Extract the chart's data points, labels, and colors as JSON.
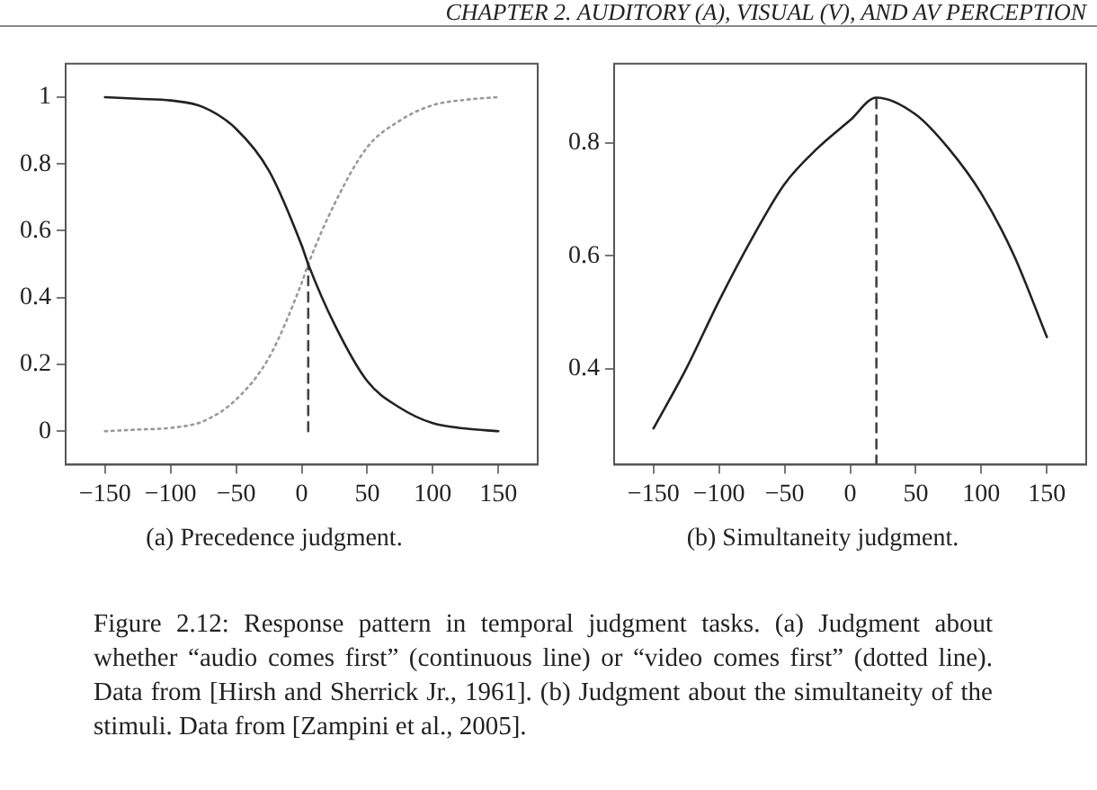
{
  "chart_data": [
    {
      "type": "line",
      "title": "(a) Precedence judgment.",
      "annotations": [
        "CHAPTER 2. AUDITORY (A), VISUAL (V), AND AV PERCEPTION",
        "Figure 2.12: Response pattern in temporal judgment tasks. (a) Judgment about whether “audio comes first” (continuous line) or “video comes first” (dotted line). Data from [Hirsh and Sherrick Jr., 1961]. (b) Judgment about the simultaneity of the stimuli. Data from [Zampini et al., 2005]."
      ],
      "xlim": [
        -180,
        180
      ],
      "xticks": [
        {
          "value": -150,
          "label": "−150"
        },
        {
          "value": -100,
          "label": "−100"
        },
        {
          "value": -50,
          "label": "−50"
        },
        0,
        50,
        100,
        150
      ],
      "ylim": [
        -0.1,
        1.1
      ],
      "yticks": [
        0,
        0.2,
        0.4,
        0.6,
        0.8,
        1
      ],
      "marker": "none",
      "legend": false,
      "series": [
        {
          "color": "#222222",
          "line_style": "solid",
          "x": [
            -150,
            -125,
            -100,
            -75,
            -50,
            -25,
            0,
            5,
            25,
            50,
            75,
            100,
            125,
            150
          ],
          "values": [
            1,
            0.995,
            0.99,
            0.97,
            0.905,
            0.78,
            0.556,
            0.5,
            0.32,
            0.15,
            0.07,
            0.024,
            0.008,
            0
          ]
        },
        {
          "color": "#999999",
          "line_style": "dotted",
          "x": [
            -150,
            -125,
            -100,
            -75,
            -50,
            -25,
            0,
            5,
            25,
            50,
            75,
            100,
            125,
            150
          ],
          "values": [
            0,
            0.005,
            0.01,
            0.03,
            0.095,
            0.22,
            0.444,
            0.5,
            0.68,
            0.85,
            0.93,
            0.976,
            0.992,
            1
          ]
        },
        {
          "color": "#444444",
          "line_style": "dashed",
          "x": [
            5,
            5
          ],
          "values": [
            0,
            0.5
          ]
        }
      ]
    },
    {
      "type": "line",
      "title": "(b) Simultaneity judgment.",
      "xlim": [
        -180,
        180
      ],
      "xticks": [
        {
          "value": -150,
          "label": "−150"
        },
        {
          "value": -100,
          "label": "−100"
        },
        {
          "value": -50,
          "label": "−50"
        },
        0,
        50,
        100,
        150
      ],
      "ylim": [
        0.23,
        0.94
      ],
      "yticks": [
        0.4,
        0.6,
        0.8
      ],
      "marker": "none",
      "legend": false,
      "series": [
        {
          "color": "#222222",
          "line_style": "solid",
          "x": [
            -150,
            -125,
            -100,
            -75,
            -50,
            -25,
            0,
            20,
            50,
            75,
            100,
            125,
            150
          ],
          "values": [
            0.294,
            0.4,
            0.52,
            0.63,
            0.727,
            0.79,
            0.84,
            0.88,
            0.85,
            0.79,
            0.71,
            0.6,
            0.456
          ]
        },
        {
          "color": "#444444",
          "line_style": "dashed",
          "x": [
            20,
            20
          ],
          "values": [
            0.23,
            0.88
          ]
        }
      ]
    }
  ]
}
